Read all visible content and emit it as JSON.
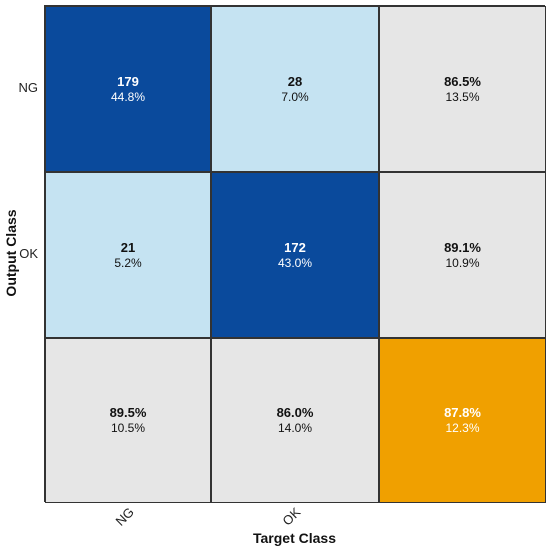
{
  "chart_data": {
    "type": "heatmap",
    "xlabel": "Target Class",
    "ylabel": "Output Class",
    "row_labels": [
      "NG",
      "OK",
      ""
    ],
    "col_labels": [
      "NG",
      "OK",
      ""
    ],
    "cells": [
      [
        {
          "main": "179",
          "sub": "44.8%",
          "kind": "correct"
        },
        {
          "main": "28",
          "sub": "7.0%",
          "kind": "incorrect"
        },
        {
          "main": "86.5%",
          "sub": "13.5%",
          "kind": "summary"
        }
      ],
      [
        {
          "main": "21",
          "sub": "5.2%",
          "kind": "incorrect"
        },
        {
          "main": "172",
          "sub": "43.0%",
          "kind": "correct"
        },
        {
          "main": "89.1%",
          "sub": "10.9%",
          "kind": "summary"
        }
      ],
      [
        {
          "main": "89.5%",
          "sub": "10.5%",
          "kind": "summary"
        },
        {
          "main": "86.0%",
          "sub": "14.0%",
          "kind": "summary"
        },
        {
          "main": "87.8%",
          "sub": "12.3%",
          "kind": "overall"
        }
      ]
    ],
    "colors": {
      "correct": "#0a4a9c",
      "incorrect": "#c5e3f2",
      "summary": "#e6e6e6",
      "overall": "#f0a000",
      "text_dark": "#111111",
      "text_light": "#ffffff"
    }
  }
}
